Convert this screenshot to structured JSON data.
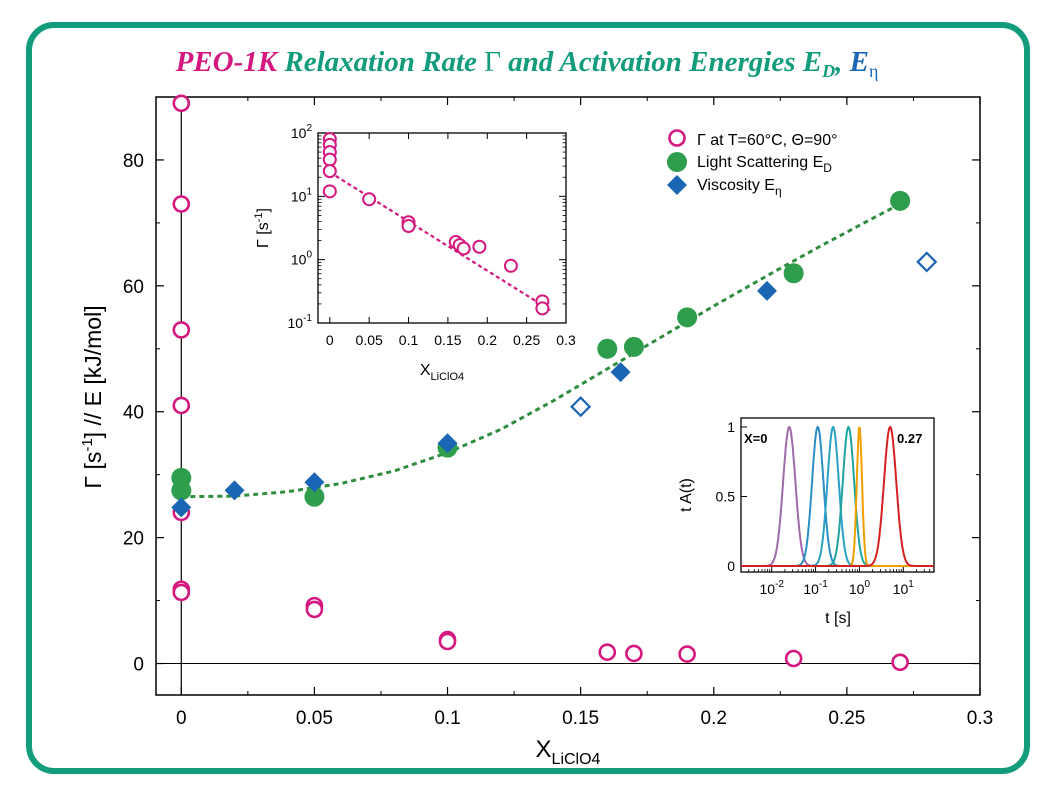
{
  "title": {
    "part1": "PEO-1K",
    "part2": " Relaxation Rate ",
    "gamma": "Γ",
    "part3": " and Activation Energies E",
    "sub_d": "D",
    "comma": ", ",
    "part4": "E",
    "sub_eta": "η"
  },
  "colors": {
    "pink": "#d4187f",
    "green": "#2e9e4c",
    "blue": "#1a66b4",
    "teal": "#129c7c",
    "dashed_green": "#2e8e3e",
    "dashed_pink": "#d4187f"
  },
  "chart_data": [
    {
      "type": "scatter",
      "id": "main",
      "x_label_main": "X",
      "x_label_sub": "LiClO4",
      "y_label": "Γ [s-1] // E [kJ/mol]",
      "y_label_parts": {
        "a": "Γ [s",
        "sup": "-1",
        "b": "]  //  E [kJ/mol]"
      },
      "xlim": [
        -0.0095,
        0.3
      ],
      "ylim": [
        -5,
        90
      ],
      "x_ticks": [
        0,
        0.05,
        0.1,
        0.15,
        0.2,
        0.25,
        0.3
      ],
      "x_tick_labels": [
        "0",
        "0.05",
        "0.1",
        "0.15",
        "0.2",
        "0.25",
        "0.3"
      ],
      "y_ticks": [
        0,
        20,
        40,
        60,
        80
      ],
      "y_tick_labels": [
        "0",
        "20",
        "40",
        "60",
        "80"
      ],
      "legend_position": "top-right",
      "legend": [
        {
          "label": "Γ at T=60°C, Θ=90°",
          "marker": "open-circle"
        },
        {
          "label_main": "Light Scattering E",
          "label_sub": "D",
          "marker": "filled-circle"
        },
        {
          "label_main": "Viscosity E",
          "label_sub": "η",
          "marker": "filled-diamond"
        }
      ],
      "series": [
        {
          "name": "Γ at T=60°C, Θ=90°",
          "marker": "open-circle",
          "points": [
            [
              0,
              89
            ],
            [
              0,
              73
            ],
            [
              0,
              53
            ],
            [
              0,
              41
            ],
            [
              0,
              24
            ],
            [
              0,
              11.8
            ],
            [
              0,
              11.3
            ],
            [
              0.05,
              9.2
            ],
            [
              0.05,
              8.6
            ],
            [
              0.1,
              3.8
            ],
            [
              0.1,
              3.5
            ],
            [
              0.16,
              1.8
            ],
            [
              0.17,
              1.6
            ],
            [
              0.19,
              1.5
            ],
            [
              0.23,
              0.8
            ],
            [
              0.27,
              0.2
            ]
          ]
        },
        {
          "name": "Light Scattering E_D",
          "marker": "filled-circle",
          "points": [
            [
              0,
              29.5
            ],
            [
              0,
              27.5
            ],
            [
              0.05,
              26.5
            ],
            [
              0.1,
              34.3
            ],
            [
              0.16,
              50
            ],
            [
              0.17,
              50.3
            ],
            [
              0.19,
              55
            ],
            [
              0.23,
              62
            ],
            [
              0.27,
              73.5
            ]
          ]
        },
        {
          "name": "Viscosity E_η",
          "marker": "filled-diamond",
          "points": [
            [
              0,
              24.8
            ],
            [
              0.02,
              27.5
            ],
            [
              0.05,
              28.8
            ],
            [
              0.1,
              35
            ],
            [
              0.165,
              46.3
            ],
            [
              0.22,
              59.2
            ]
          ]
        },
        {
          "name": "Viscosity E_η (open)",
          "marker": "open-diamond",
          "points": [
            [
              0.15,
              40.8
            ],
            [
              0.28,
              63.8
            ]
          ]
        },
        {
          "name": "fit",
          "marker": "dashed-line",
          "points": [
            [
              0,
              26.5
            ],
            [
              0.02,
              26.6
            ],
            [
              0.04,
              27.3
            ],
            [
              0.06,
              28.6
            ],
            [
              0.08,
              30.6
            ],
            [
              0.1,
              33.5
            ],
            [
              0.12,
              37.2
            ],
            [
              0.14,
              41.8
            ],
            [
              0.16,
              46.8
            ],
            [
              0.18,
              51.8
            ],
            [
              0.2,
              56.8
            ],
            [
              0.22,
              61.6
            ],
            [
              0.24,
              66.3
            ],
            [
              0.26,
              70.8
            ],
            [
              0.27,
              73
            ]
          ]
        }
      ]
    },
    {
      "type": "scatter",
      "id": "inset-rate",
      "x_label_main": "X",
      "x_label_sub": "LiClO4",
      "y_label_parts": {
        "a": "Γ [s",
        "sup": "-1",
        "b": "]"
      },
      "y_scale": "log",
      "xlim": [
        -0.015,
        0.3
      ],
      "ylim": [
        0.1,
        100
      ],
      "x_ticks": [
        0,
        0.05,
        0.1,
        0.15,
        0.2,
        0.25,
        0.3
      ],
      "x_tick_labels": [
        "0",
        "0.05",
        "0.1",
        "0.15",
        "0.2",
        "0.25",
        "0.3"
      ],
      "y_tick_labels": [
        {
          "base": "10",
          "exp": "-1"
        },
        {
          "base": "10",
          "exp": "0"
        },
        {
          "base": "10",
          "exp": "1"
        },
        {
          "base": "10",
          "exp": "2"
        }
      ],
      "points": [
        [
          0,
          80
        ],
        [
          0,
          65
        ],
        [
          0,
          50
        ],
        [
          0,
          38
        ],
        [
          0,
          25
        ],
        [
          0,
          12
        ],
        [
          0.05,
          9
        ],
        [
          0.1,
          3.9
        ],
        [
          0.1,
          3.4
        ],
        [
          0.16,
          1.9
        ],
        [
          0.165,
          1.7
        ],
        [
          0.17,
          1.5
        ],
        [
          0.19,
          1.6
        ],
        [
          0.23,
          0.8
        ],
        [
          0.27,
          0.22
        ],
        [
          0.27,
          0.17
        ]
      ],
      "fit": [
        [
          0,
          24
        ],
        [
          0.28,
          0.16
        ]
      ]
    },
    {
      "type": "line",
      "id": "inset-distribution",
      "x_label": "t [s]",
      "y_label": "t A(t)",
      "x_scale": "log",
      "xlim_log10": [
        -2.7,
        1.7
      ],
      "ylim": [
        0,
        1
      ],
      "y_ticks": [
        0,
        0.5,
        1
      ],
      "y_tick_labels": [
        "0",
        "0.5",
        "1"
      ],
      "x_tick_labels": [
        {
          "base": "10",
          "exp": "-2"
        },
        {
          "base": "10",
          "exp": "-1"
        },
        {
          "base": "10",
          "exp": "0"
        },
        {
          "base": "10",
          "exp": "1"
        }
      ],
      "annotations": {
        "left": "X=0",
        "right": "0.27"
      },
      "series": [
        {
          "center_log10": -1.6,
          "width": 0.14,
          "color": "#a06aaa"
        },
        {
          "center_log10": -0.95,
          "width": 0.13,
          "color": "#2a8fc4"
        },
        {
          "center_log10": -0.6,
          "width": 0.13,
          "color": "#2aa0c4"
        },
        {
          "center_log10": -0.25,
          "width": 0.13,
          "color": "#1fa5a0"
        },
        {
          "center_log10": 0.0,
          "width": 0.06,
          "color": "#f0a000"
        },
        {
          "center_log10": 0.7,
          "width": 0.14,
          "color": "#d42020"
        }
      ]
    }
  ]
}
